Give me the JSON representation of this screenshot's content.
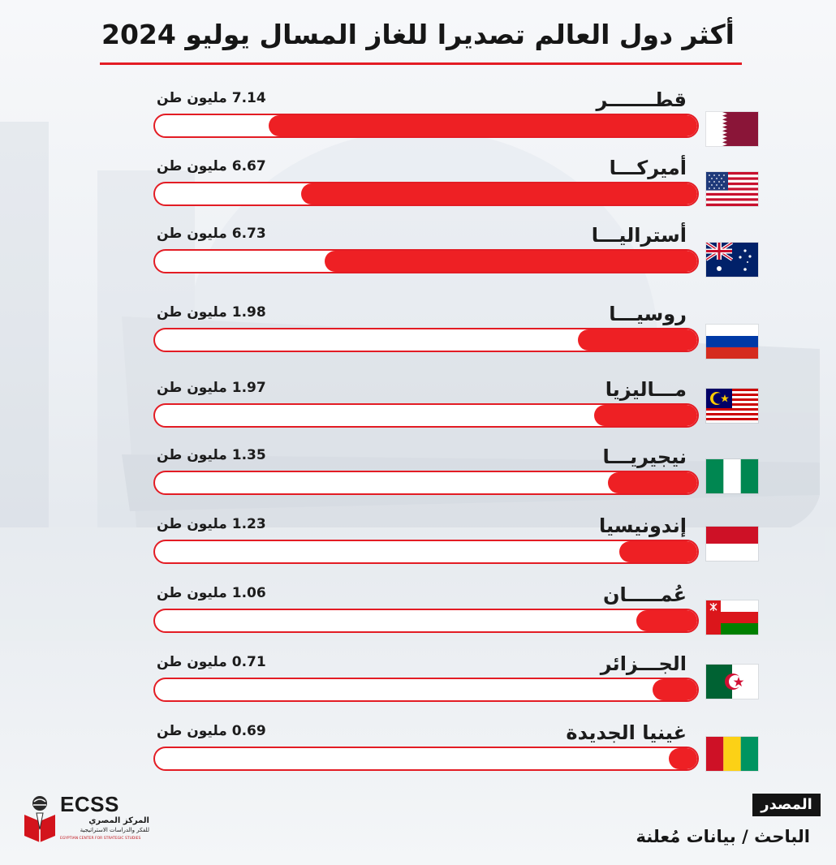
{
  "title": "أكثر دول العالم تصديرا للغاز المسال يوليو 2024",
  "colors": {
    "accent": "#e31c24",
    "bar_fill": "#ee2024",
    "text": "#1c1c1c"
  },
  "chart_data": {
    "type": "bar",
    "orientation": "horizontal",
    "title": "أكثر دول العالم تصديرا للغاز المسال يوليو 2024",
    "unit": "مليون طن",
    "bars": [
      {
        "category": "قطـــــــر",
        "value": 7.14,
        "value_label": "7.14  مليون طن",
        "flag": "qatar-flag"
      },
      {
        "category": "أميركـــا",
        "value": 6.67,
        "value_label": "6.67  مليون طن",
        "flag": "usa-flag"
      },
      {
        "category": "أستراليـــا",
        "value": 6.73,
        "value_label": "6.73  مليون طن",
        "flag": "australia-flag"
      },
      {
        "category": "روسيـــا",
        "value": 1.98,
        "value_label": "1.98  مليون طن",
        "flag": "russia-flag"
      },
      {
        "category": "مـــاليزيا",
        "value": 1.97,
        "value_label": "1.97 مليون طن",
        "flag": "malaysia-flag"
      },
      {
        "category": "نيجيريـــا",
        "value": 1.35,
        "value_label": "1.35 مليون طن",
        "flag": "nigeria-flag"
      },
      {
        "category": "إندونيسيا",
        "value": 1.23,
        "value_label": "1.23 مليون طن",
        "flag": "indonesia-flag"
      },
      {
        "category": "عُمـــــان",
        "value": 1.06,
        "value_label": "1.06  مليون طن",
        "flag": "oman-flag"
      },
      {
        "category": "الجـــزائر",
        "value": 0.71,
        "value_label": "0.71  مليون طن",
        "flag": "algeria-flag"
      },
      {
        "category": "غينيا الجديدة",
        "value": 0.69,
        "value_label": "0.69 مليون طن",
        "flag": "guinea-flag"
      }
    ],
    "fill_fraction": [
      0.79,
      0.73,
      0.687,
      0.22,
      0.19,
      0.165,
      0.143,
      0.113,
      0.083,
      0.053
    ],
    "grid": false,
    "legend": "none"
  },
  "source": {
    "label": "المصدر",
    "text": "الباحث / بيانات مُعلنة"
  },
  "logo": {
    "brand": "ECSS",
    "arabic_name": "المركز المصري",
    "arabic_sub": "للفكر والدراسات الاستراتيجية",
    "english_name": "EGYPTIAN CENTER FOR STRATEGIC STUDIES"
  }
}
